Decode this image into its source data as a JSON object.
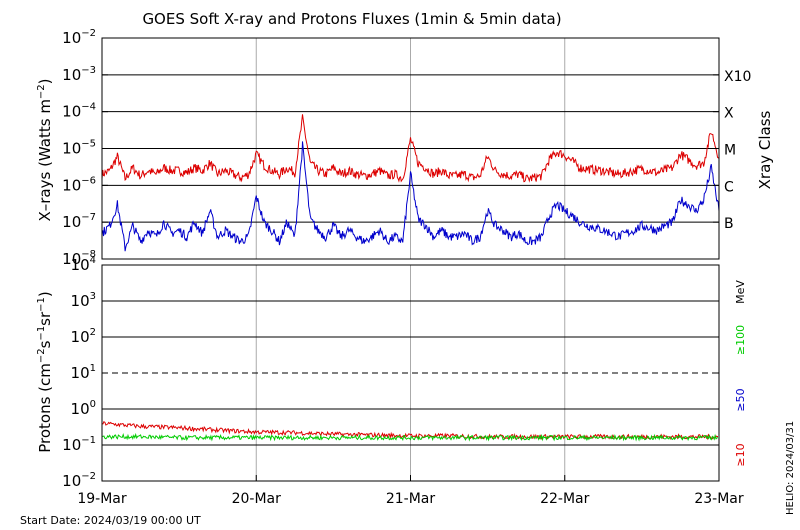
{
  "title": "GOES Soft X-ray and Protons Fluxes   (1min & 5min data)",
  "start_date": "Start Date: 2024/03/19 00:00 UT",
  "side_label": "HELIO: 2024/03/31",
  "colors": {
    "long": "#dd0000",
    "short": "#0000cc",
    "ge10": "#dd0000",
    "ge50": "#0000cc",
    "ge100": "#00cc00",
    "grid": "#000000",
    "vgrid": "#aaaaaa"
  },
  "chart_data": [
    {
      "type": "line",
      "ylabel": "X-rays (Watts m^-2)",
      "ylabel_parts": {
        "pre": "X–rays (Watts m",
        "sup": "−2",
        "post": ")"
      },
      "y_scale": "log",
      "ylim": [
        1e-08,
        0.01
      ],
      "y_ticks": [
        {
          "base": "10",
          "exp": "−2"
        },
        {
          "base": "10",
          "exp": "−3"
        },
        {
          "base": "10",
          "exp": "−4"
        },
        {
          "base": "10",
          "exp": "−5"
        },
        {
          "base": "10",
          "exp": "−6"
        },
        {
          "base": "10",
          "exp": "−7"
        },
        {
          "base": "10",
          "exp": "−8"
        }
      ],
      "right_axis_label": "Xray Class",
      "class_labels": [
        "X10",
        "X",
        "M",
        "C",
        "B"
      ],
      "x_ticks": [
        "19-Mar",
        "20-Mar",
        "21-Mar",
        "22-Mar",
        "23-Mar"
      ],
      "xlim_days": [
        0,
        4
      ],
      "series": [
        {
          "key": "long",
          "x": [
            0,
            0.05,
            0.1,
            0.15,
            0.2,
            0.25,
            0.3,
            0.35,
            0.4,
            0.45,
            0.5,
            0.55,
            0.6,
            0.65,
            0.7,
            0.75,
            0.8,
            0.85,
            0.9,
            0.95,
            1.0,
            1.05,
            1.1,
            1.15,
            1.2,
            1.25,
            1.3,
            1.35,
            1.4,
            1.45,
            1.5,
            1.55,
            1.6,
            1.65,
            1.7,
            1.75,
            1.8,
            1.85,
            1.9,
            1.95,
            2.0,
            2.05,
            2.1,
            2.15,
            2.2,
            2.25,
            2.3,
            2.35,
            2.4,
            2.45,
            2.5,
            2.55,
            2.6,
            2.65,
            2.7,
            2.75,
            2.8,
            2.85,
            2.9,
            2.95,
            3.0,
            3.05,
            3.1,
            3.15,
            3.2,
            3.25,
            3.3,
            3.35,
            3.4,
            3.45,
            3.5,
            3.55,
            3.6,
            3.65,
            3.7,
            3.75,
            3.8,
            3.85,
            3.9,
            3.95,
            4.0
          ],
          "values": [
            2e-06,
            2.5e-06,
            6e-06,
            1.5e-06,
            3e-06,
            1.8e-06,
            2.5e-06,
            2e-06,
            3e-06,
            2.5e-06,
            2.5e-06,
            2.2e-06,
            3e-06,
            2.5e-06,
            4e-06,
            2e-06,
            2.5e-06,
            2e-06,
            1.6e-06,
            2e-06,
            7e-06,
            3.5e-06,
            2.5e-06,
            2e-06,
            3e-06,
            2.2e-06,
            6.5e-05,
            4e-06,
            2.5e-06,
            2e-06,
            3e-06,
            2e-06,
            2.5e-06,
            2e-06,
            1.8e-06,
            2e-06,
            2.5e-06,
            1.8e-06,
            2e-06,
            1.5e-06,
            1.8e-05,
            4e-06,
            3e-06,
            2e-06,
            2.5e-06,
            1.8e-06,
            1.8e-06,
            2e-06,
            1.6e-06,
            1.8e-06,
            6e-06,
            2.5e-06,
            2e-06,
            1.8e-06,
            2e-06,
            1.5e-06,
            1.6e-06,
            1.8e-06,
            5e-06,
            8e-06,
            6.5e-06,
            4.5e-06,
            3e-06,
            2.8e-06,
            2.6e-06,
            2.5e-06,
            2.2e-06,
            2e-06,
            2.2e-06,
            2.5e-06,
            2.8e-06,
            2.5e-06,
            2.2e-06,
            2.6e-06,
            3e-06,
            7e-06,
            5e-06,
            3.5e-06,
            4e-06,
            3e-05,
            5.5e-06
          ]
        },
        {
          "key": "short",
          "x": [
            0,
            0.05,
            0.1,
            0.15,
            0.2,
            0.25,
            0.3,
            0.35,
            0.4,
            0.45,
            0.5,
            0.55,
            0.6,
            0.65,
            0.7,
            0.75,
            0.8,
            0.85,
            0.9,
            0.95,
            1.0,
            1.05,
            1.1,
            1.15,
            1.2,
            1.25,
            1.3,
            1.35,
            1.4,
            1.45,
            1.5,
            1.55,
            1.6,
            1.65,
            1.7,
            1.75,
            1.8,
            1.85,
            1.9,
            1.95,
            2.0,
            2.05,
            2.1,
            2.15,
            2.2,
            2.25,
            2.3,
            2.35,
            2.4,
            2.45,
            2.5,
            2.55,
            2.6,
            2.65,
            2.7,
            2.75,
            2.8,
            2.85,
            2.9,
            2.95,
            3.0,
            3.05,
            3.1,
            3.15,
            3.2,
            3.25,
            3.3,
            3.35,
            3.4,
            3.45,
            3.5,
            3.55,
            3.6,
            3.65,
            3.7,
            3.75,
            3.8,
            3.85,
            3.9,
            3.95,
            4.0
          ],
          "values": [
            5e-08,
            8e-08,
            3e-07,
            2e-08,
            8e-08,
            3e-08,
            6e-08,
            4e-08,
            1e-07,
            5e-08,
            6e-08,
            4e-08,
            1e-07,
            5e-08,
            2e-07,
            4e-08,
            6e-08,
            4e-08,
            3e-08,
            4e-08,
            5e-07,
            1e-07,
            6e-08,
            3e-08,
            1e-07,
            4e-08,
            1.2e-05,
            1.2e-07,
            6e-08,
            4e-08,
            8e-08,
            4e-08,
            6e-08,
            4e-08,
            3e-08,
            4e-08,
            6e-08,
            3e-08,
            4e-08,
            3e-08,
            2e-06,
            1.2e-07,
            8e-08,
            4e-08,
            6e-08,
            4e-08,
            4e-08,
            5e-08,
            3e-08,
            4e-08,
            2e-07,
            8e-08,
            6e-08,
            4e-08,
            5e-08,
            3e-08,
            3e-08,
            4e-08,
            1.5e-07,
            3e-07,
            2e-07,
            1.5e-07,
            1e-07,
            8e-08,
            7e-08,
            6e-08,
            5e-08,
            4e-08,
            5e-08,
            6e-08,
            8e-08,
            7e-08,
            6e-08,
            8e-08,
            1e-07,
            4e-07,
            3e-07,
            2e-07,
            4e-07,
            3e-06,
            2e-07
          ]
        }
      ]
    },
    {
      "type": "line",
      "ylabel": "Protons (cm^-2 s^-1 sr^-1)",
      "ylabel_parts": {
        "a": "Protons (cm",
        "s1": "−2",
        "b": "s",
        "s2": "−1",
        "c": "sr",
        "s3": "−1",
        "d": ")"
      },
      "y_scale": "log",
      "ylim": [
        0.01,
        10000.0
      ],
      "y_ticks": [
        {
          "base": "10",
          "exp": "4"
        },
        {
          "base": "10",
          "exp": "3"
        },
        {
          "base": "10",
          "exp": "2"
        },
        {
          "base": "10",
          "exp": "1"
        },
        {
          "base": "10",
          "exp": "0"
        },
        {
          "base": "10",
          "exp": "−1"
        },
        {
          "base": "10",
          "exp": "−2"
        }
      ],
      "threshold_line": 10,
      "unit_label": "MeV",
      "energy_labels": [
        "≥100",
        "≥50",
        "≥10"
      ],
      "series": [
        {
          "key": "ge10",
          "x": [
            0,
            0.25,
            0.5,
            0.75,
            1.0,
            1.25,
            1.5,
            1.75,
            2.0,
            2.25,
            2.5,
            2.75,
            3.0,
            3.25,
            3.5,
            3.75,
            4.0
          ],
          "values": [
            0.4,
            0.33,
            0.3,
            0.26,
            0.23,
            0.22,
            0.2,
            0.19,
            0.18,
            0.18,
            0.17,
            0.17,
            0.17,
            0.17,
            0.17,
            0.17,
            0.17
          ]
        },
        {
          "key": "ge100",
          "x": [
            0,
            0.25,
            0.5,
            0.75,
            1.0,
            1.25,
            1.5,
            1.75,
            2.0,
            2.25,
            2.5,
            2.75,
            3.0,
            3.25,
            3.5,
            3.75,
            4.0
          ],
          "values": [
            0.17,
            0.17,
            0.16,
            0.16,
            0.16,
            0.16,
            0.16,
            0.16,
            0.16,
            0.16,
            0.16,
            0.16,
            0.16,
            0.16,
            0.16,
            0.16,
            0.16
          ]
        }
      ]
    }
  ]
}
